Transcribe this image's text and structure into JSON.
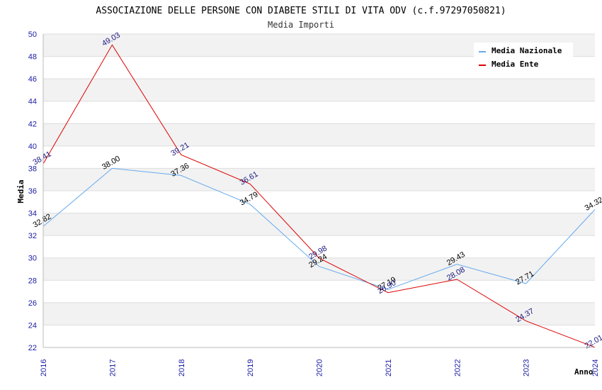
{
  "chart_data": {
    "type": "line",
    "title": "ASSOCIAZIONE DELLE PERSONE CON DIABETE STILI DI VITA ODV (c.f.97297050821)",
    "subtitle": "Media Importi",
    "xlabel": "Anno",
    "ylabel": "Media",
    "categories": [
      "2016",
      "2017",
      "2018",
      "2019",
      "2020",
      "2021",
      "2022",
      "2023",
      "2024"
    ],
    "ylim": [
      22,
      50
    ],
    "yticks": [
      22,
      24,
      26,
      28,
      30,
      32,
      34,
      36,
      38,
      40,
      42,
      44,
      46,
      48,
      50
    ],
    "grid": "horizontal bands",
    "legend": "top-right",
    "series": [
      {
        "name": "Media Nazionale",
        "color": "#66aaee",
        "label_color": "#000000",
        "values": [
          32.82,
          38.0,
          37.36,
          34.79,
          29.24,
          27.19,
          29.43,
          27.71,
          34.32
        ],
        "labels": [
          "32.82",
          "38.00",
          "37.36",
          "34.79",
          "29.24",
          "27.19",
          "29.43",
          "27.71",
          "34.32"
        ]
      },
      {
        "name": "Media Ente",
        "color": "#dd0000",
        "label_color": "#1a1a80",
        "values": [
          38.41,
          49.03,
          39.21,
          36.61,
          29.98,
          26.9,
          28.08,
          24.37,
          22.01
        ],
        "labels": [
          "38.41",
          "49.03",
          "39.21",
          "36.61",
          "29.98",
          "26.90",
          "28.08",
          "24.37",
          "22.01"
        ]
      }
    ]
  }
}
